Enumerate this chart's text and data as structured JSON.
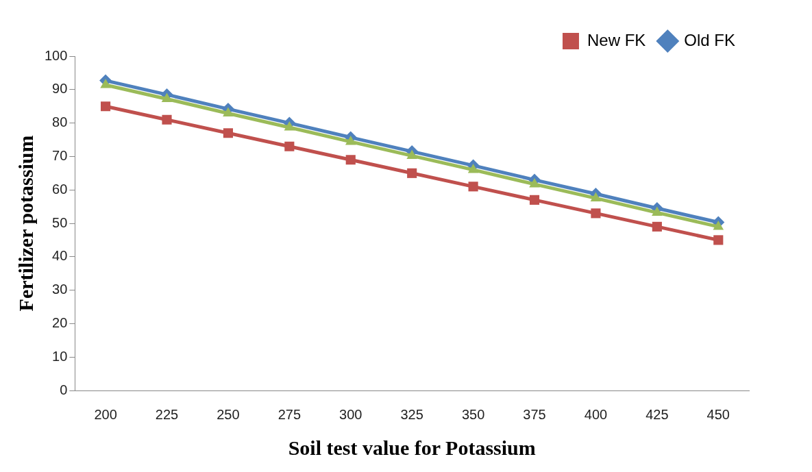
{
  "chart_data": {
    "type": "line",
    "xlabel": "Soil test value for Potassium",
    "ylabel": "Fertilizer potassium",
    "categories": [
      "200",
      "225",
      "250",
      "275",
      "300",
      "325",
      "350",
      "375",
      "400",
      "425",
      "450"
    ],
    "ylim": [
      0,
      100
    ],
    "yticks": [
      0,
      10,
      20,
      30,
      40,
      50,
      60,
      70,
      80,
      90,
      100
    ],
    "grid": false,
    "legend": "top right",
    "series": [
      {
        "color": "#9bbb59",
        "marker": "triangle",
        "values": [
          91.4,
          87.2,
          82.9,
          78.7,
          74.4,
          70.2,
          66,
          61.7,
          57.5,
          53.2,
          49
        ]
      },
      {
        "name": "Old FK",
        "color": "#4f81bd",
        "marker": "diamond",
        "values": [
          92.7,
          88.5,
          84.2,
          80,
          75.7,
          71.5,
          67.3,
          63,
          58.8,
          54.5,
          50.3
        ]
      },
      {
        "name": "New FK",
        "color": "#c0504d",
        "marker": "square",
        "values": [
          85,
          81,
          77,
          73,
          69,
          65,
          61,
          57,
          53,
          49,
          45
        ]
      }
    ]
  }
}
